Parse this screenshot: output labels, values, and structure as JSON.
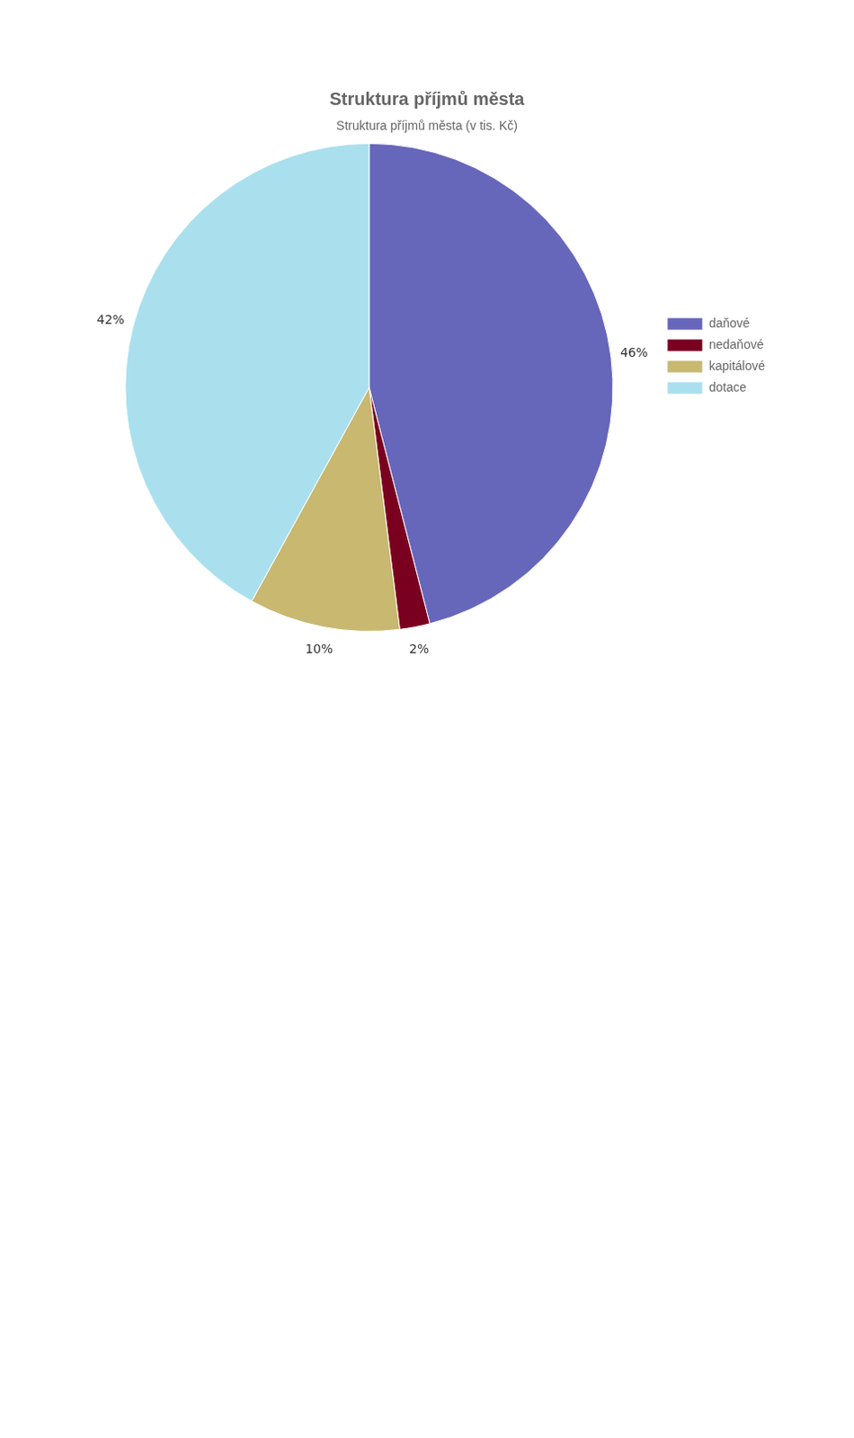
{
  "chart_data": {
    "type": "pie",
    "title": "Struktura příjmů města",
    "subtitle": "Struktura příjmů města (v tis. Kč)",
    "categories": [
      "daňové",
      "nedaňové",
      "kapitálové",
      "dotace"
    ],
    "values": [
      46,
      2,
      10,
      42
    ],
    "value_labels": [
      "46%",
      "2%",
      "10%",
      "42%"
    ],
    "colors": [
      "#6666bb",
      "#7a0020",
      "#c8b870",
      "#aae0ee"
    ],
    "data_labels": true,
    "legend": "right"
  }
}
